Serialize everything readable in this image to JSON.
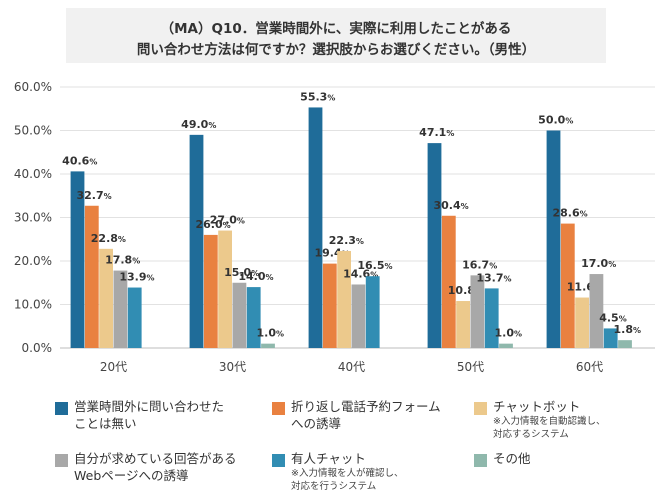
{
  "title": {
    "line1": "（MA）Q10．営業時間外に、実際に利用したことがある",
    "line2": "問い合わせ方法は何ですか？選択肢からお選びください。（男性）"
  },
  "chart_data": {
    "type": "bar",
    "categories": [
      "20代",
      "30代",
      "40代",
      "50代",
      "60代"
    ],
    "ylim": [
      0,
      60
    ],
    "yticks": [
      "0.0%",
      "10.0%",
      "20.0%",
      "30.0%",
      "40.0%",
      "50.0%",
      "60.0%"
    ],
    "ytick_values": [
      0,
      10,
      20,
      30,
      40,
      50,
      60
    ],
    "series": [
      {
        "name": "営業時間外に問い合わせたことは無い",
        "legend": [
          "営業時間外に問い合わせた",
          "ことは無い"
        ],
        "note": [],
        "color": "#1f6c99",
        "values": [
          40.6,
          49.0,
          55.3,
          47.1,
          50.0
        ],
        "labels": [
          "40.6",
          "49.0",
          "55.3",
          "47.1",
          "50.0"
        ]
      },
      {
        "name": "折り返し電話予約フォームへの誘導",
        "legend": [
          "折り返し電話予約フォーム",
          "への誘導"
        ],
        "note": [],
        "color": "#e98140",
        "values": [
          32.7,
          26.0,
          19.4,
          30.4,
          28.6
        ],
        "labels": [
          "32.7",
          "26.0",
          "19.4",
          "30.4",
          "28.6"
        ]
      },
      {
        "name": "チャットボット",
        "legend": [
          "チャットボット"
        ],
        "note": [
          "※入力情報を自動認識し、",
          "対応するシステム"
        ],
        "color": "#ecc98c",
        "values": [
          22.8,
          27.0,
          22.3,
          10.8,
          11.6
        ],
        "labels": [
          "22.8",
          "27.0",
          "22.3",
          "10.8",
          "11.6"
        ]
      },
      {
        "name": "自分が求めている回答があるWebページへの誘導",
        "legend": [
          "自分が求めている回答がある",
          "Webページへの誘導"
        ],
        "note": [],
        "color": "#a8a8a8",
        "values": [
          17.8,
          15.0,
          14.6,
          16.7,
          17.0
        ],
        "labels": [
          "17.8",
          "15.0",
          "14.6",
          "16.7",
          "17.0"
        ]
      },
      {
        "name": "有人チャット",
        "legend": [
          "有人チャット"
        ],
        "note": [
          "※入力情報を人が確認し、",
          "対応を行うシステム"
        ],
        "color": "#318db3",
        "values": [
          13.9,
          14.0,
          16.5,
          13.7,
          4.5
        ],
        "labels": [
          "13.9",
          "14.0",
          "16.5",
          "13.7",
          "4.5"
        ]
      },
      {
        "name": "その他",
        "legend": [
          "その他"
        ],
        "note": [],
        "color": "#8fb8ac",
        "values": [
          0.0,
          1.0,
          0.0,
          1.0,
          1.8
        ],
        "labels": [
          "",
          "1.0",
          "",
          "1.0",
          "1.8"
        ]
      }
    ],
    "value_suffix": "%"
  }
}
